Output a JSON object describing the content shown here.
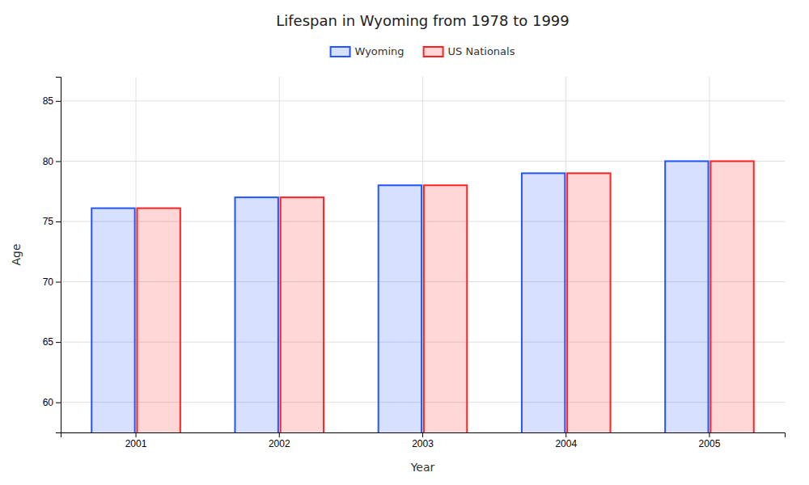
{
  "chart_data": {
    "type": "bar",
    "title": "Lifespan in Wyoming from 1978 to 1999",
    "xlabel": "Year",
    "ylabel": "Age",
    "categories": [
      "2001",
      "2002",
      "2003",
      "2004",
      "2005"
    ],
    "series": [
      {
        "name": "Wyoming",
        "color": "#2255ff",
        "values": [
          76.1,
          77.0,
          78.0,
          79.0,
          80.0
        ]
      },
      {
        "name": "US Nationals",
        "color": "#ff2222",
        "values": [
          76.1,
          77.0,
          78.0,
          79.0,
          80.0
        ]
      }
    ],
    "ylim": [
      57.5,
      87
    ],
    "yticks": [
      60,
      65,
      70,
      75,
      80,
      85
    ],
    "grid": true,
    "legend": "top"
  }
}
